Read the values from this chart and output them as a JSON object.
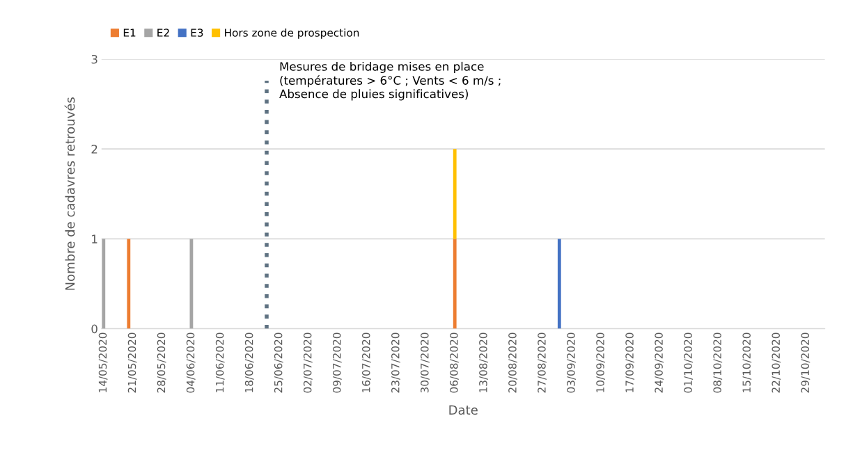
{
  "chart_data": {
    "type": "bar",
    "stacked": true,
    "xlabel": "Date",
    "ylabel": "Nombre de cadavres retrouvés",
    "x": [
      "2020-05-14",
      "2020-05-20",
      "2020-06-04",
      "2020-08-06",
      "2020-08-31"
    ],
    "series": [
      {
        "name": "E1",
        "color": "#ed7d31",
        "values": [
          null,
          1,
          null,
          1,
          null
        ]
      },
      {
        "name": "E2",
        "color": "#a5a5a5",
        "values": [
          1,
          null,
          1,
          null,
          null
        ]
      },
      {
        "name": "E3",
        "color": "#4472c4",
        "values": [
          null,
          null,
          null,
          null,
          1
        ]
      },
      {
        "name": "Hors zone de prospection",
        "color": "#ffc000",
        "values": [
          null,
          null,
          null,
          1,
          null
        ]
      }
    ],
    "xlim": [
      "2020-05-13T12:00",
      "2020-11-02T12:00"
    ],
    "xticks": [
      {
        "value": "2020-05-14",
        "label": "14/05/2020"
      },
      {
        "value": "2020-05-21",
        "label": "21/05/2020"
      },
      {
        "value": "2020-05-28",
        "label": "28/05/2020"
      },
      {
        "value": "2020-06-04",
        "label": "04/06/2020"
      },
      {
        "value": "2020-06-11",
        "label": "11/06/2020"
      },
      {
        "value": "2020-06-18",
        "label": "18/06/2020"
      },
      {
        "value": "2020-06-25",
        "label": "25/06/2020"
      },
      {
        "value": "2020-07-02",
        "label": "02/07/2020"
      },
      {
        "value": "2020-07-09",
        "label": "09/07/2020"
      },
      {
        "value": "2020-07-16",
        "label": "16/07/2020"
      },
      {
        "value": "2020-07-23",
        "label": "23/07/2020"
      },
      {
        "value": "2020-07-30",
        "label": "30/07/2020"
      },
      {
        "value": "2020-08-06",
        "label": "06/08/2020"
      },
      {
        "value": "2020-08-13",
        "label": "13/08/2020"
      },
      {
        "value": "2020-08-20",
        "label": "20/08/2020"
      },
      {
        "value": "2020-08-27",
        "label": "27/08/2020"
      },
      {
        "value": "2020-09-03",
        "label": "03/09/2020"
      },
      {
        "value": "2020-09-10",
        "label": "10/09/2020"
      },
      {
        "value": "2020-09-17",
        "label": "17/09/2020"
      },
      {
        "value": "2020-09-24",
        "label": "24/09/2020"
      },
      {
        "value": "2020-10-01",
        "label": "01/10/2020"
      },
      {
        "value": "2020-10-08",
        "label": "08/10/2020"
      },
      {
        "value": "2020-10-15",
        "label": "15/10/2020"
      },
      {
        "value": "2020-10-22",
        "label": "22/10/2020"
      },
      {
        "value": "2020-10-29",
        "label": "29/10/2020"
      }
    ],
    "ylim": [
      0,
      3
    ],
    "yticks": [
      0,
      1,
      2,
      3
    ],
    "grid": "y",
    "legend": "top left",
    "ref_lines": [
      {
        "axis": "x",
        "value": "2020-06-22",
        "label": "Mesures de bridage mises en place\n(températures > 6°C ; Vents < 6 m/s ;\nAbsence de pluies significatives)",
        "color": "#5f7282",
        "line_style": "dotted"
      }
    ]
  }
}
